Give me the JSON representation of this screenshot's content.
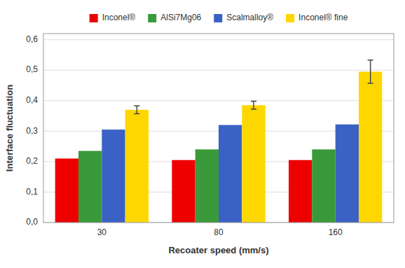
{
  "chart_data": {
    "type": "bar",
    "categories": [
      "30",
      "80",
      "160"
    ],
    "series": [
      {
        "name": "Inconel®",
        "color": "#EE0000",
        "values": [
          0.21,
          0.205,
          0.205
        ]
      },
      {
        "name": "AlSi7Mg06",
        "color": "#3A9A3A",
        "values": [
          0.235,
          0.24,
          0.24
        ]
      },
      {
        "name": "Scalmalloy®",
        "color": "#3A62C4",
        "values": [
          0.305,
          0.32,
          0.322
        ]
      },
      {
        "name": "Inconel® fine",
        "color": "#FFD700",
        "values": [
          0.37,
          0.385,
          0.495
        ],
        "errors": [
          0.013,
          0.013,
          0.038
        ]
      }
    ],
    "xlabel": "Recoater speed (mm/s)",
    "ylabel": "Interface fluctuation",
    "ylim": [
      0.0,
      0.62
    ],
    "yticks": [
      {
        "value": 0.0,
        "label": "0,0"
      },
      {
        "value": 0.1,
        "label": "0,1"
      },
      {
        "value": 0.2,
        "label": "0,2"
      },
      {
        "value": 0.3,
        "label": "0,3"
      },
      {
        "value": 0.4,
        "label": "0,4"
      },
      {
        "value": 0.5,
        "label": "0,5"
      },
      {
        "value": 0.6,
        "label": "0,6"
      }
    ],
    "grid": true,
    "legend": "top"
  }
}
